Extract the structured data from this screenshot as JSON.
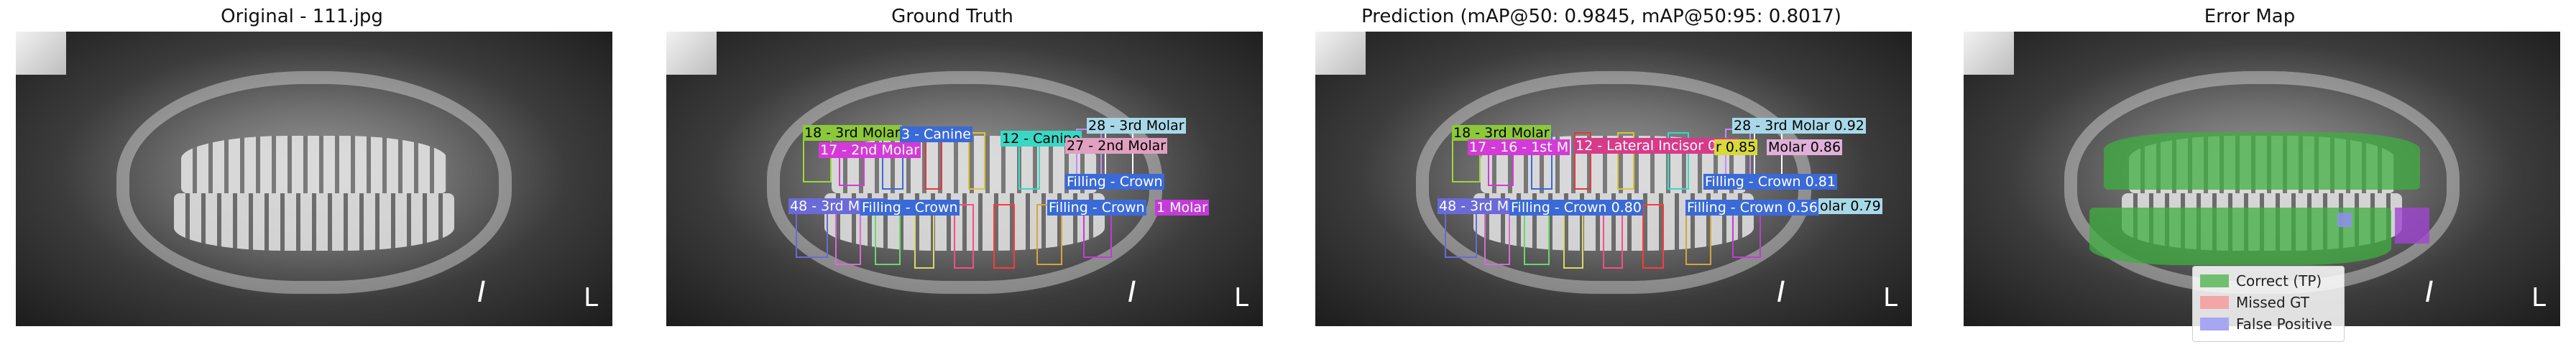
{
  "panels": {
    "original_title": "Original - 111.jpg",
    "ground_truth_title": "Ground Truth",
    "prediction_title": "Prediction (mAP@50: 0.9845, mAP@50:95: 0.8017)",
    "error_title": "Error Map"
  },
  "image_markers": {
    "i": "I",
    "l": "L"
  },
  "ground_truth_labels": [
    "18 - 3rd Molar",
    "3 - Canine",
    "12 - Canine",
    "28 - 3rd Molar",
    "17 - 2nd Molar",
    "27 - 2nd Molar",
    "Filling - Crown",
    "48 - 3rd Molar",
    "Filling - Crown",
    "Filling - Crown",
    "1 Molar"
  ],
  "prediction_labels": [
    "18 - 3rd Molar",
    "28 - 3rd Molar 0.92",
    "17 - 16 - 1st M",
    "12 - Lateral Incisor 0.85",
    "r 0.85",
    "Molar 0.86",
    "Filling - Crown 0.81",
    "48 - 3rd M",
    "Filling - Crown 0.80",
    "Filling - Crown 0.56",
    "olar 0.79"
  ],
  "legend": {
    "correct": "Correct (TP)",
    "missed": "Missed GT",
    "false_positive": "False Positive"
  },
  "colors": {
    "correct": "#3fae3f",
    "missed": "#f08f8f",
    "false_positive": "#8f8ff0"
  }
}
